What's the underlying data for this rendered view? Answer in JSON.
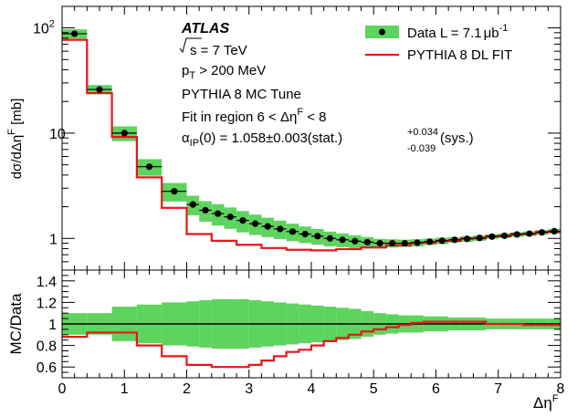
{
  "chart_data": [
    {
      "type": "line",
      "ylabel_main": "dσ/dΔη",
      "ylabel_sup": "F",
      "ylabel_unit": "[mb]",
      "yscale": "log",
      "ylim": [
        0.5,
        160
      ],
      "xlim": [
        0,
        8
      ],
      "y_ticks": [
        {
          "value": 100,
          "base": "10",
          "exp": "2"
        },
        {
          "value": 10,
          "base": "10",
          "exp": ""
        },
        {
          "value": 1,
          "base": "1",
          "exp": ""
        }
      ],
      "annotations": {
        "experiment": "ATLAS",
        "energy": "s = 7 TeV",
        "pt_base": "p",
        "pt_sub": "T",
        "pt_rest": " > 200 MeV",
        "tune": "PYTHIA 8 MC Tune",
        "fit_region": "Fit in region 6 < Δη",
        "fit_region_sup": "F",
        "fit_region_end": " < 8",
        "alpha_base": "α",
        "alpha_sub": "IP",
        "alpha_main": "(0) = 1.058±0.003(stat.)",
        "alpha_up": "+0.034",
        "alpha_down": "-0.039",
        "alpha_end": "(sys.)"
      },
      "legend": {
        "position": "top-right",
        "data_label": "Data L = 7.1",
        "data_unit": "μb",
        "data_exp": "-1",
        "mc_label": "PYTHIA 8 DL FIT"
      },
      "bin_edges": [
        0,
        0.4,
        0.8,
        1.2,
        1.6,
        2.0,
        2.2,
        2.4,
        2.6,
        2.8,
        3.0,
        3.2,
        3.4,
        3.6,
        3.8,
        4.0,
        4.2,
        4.4,
        4.6,
        4.8,
        5.0,
        5.2,
        5.4,
        5.6,
        5.8,
        6.0,
        6.2,
        6.4,
        6.6,
        6.8,
        7.0,
        7.2,
        7.4,
        7.6,
        7.8,
        8.0
      ],
      "series": [
        {
          "name": "Data L = 7.1μb-1",
          "values": [
            88,
            26,
            10,
            4.8,
            2.8,
            2.1,
            1.85,
            1.72,
            1.6,
            1.48,
            1.38,
            1.3,
            1.23,
            1.16,
            1.1,
            1.05,
            1.0,
            0.97,
            0.94,
            0.92,
            0.9,
            0.9,
            0.9,
            0.91,
            0.93,
            0.95,
            0.97,
            0.99,
            1.01,
            1.04,
            1.06,
            1.09,
            1.11,
            1.14,
            1.17
          ],
          "rel_unc": [
            0.1,
            0.1,
            0.16,
            0.18,
            0.2,
            0.21,
            0.22,
            0.23,
            0.23,
            0.23,
            0.22,
            0.21,
            0.2,
            0.19,
            0.18,
            0.17,
            0.16,
            0.15,
            0.14,
            0.12,
            0.1,
            0.09,
            0.08,
            0.08,
            0.07,
            0.07,
            0.06,
            0.06,
            0.06,
            0.05,
            0.05,
            0.05,
            0.05,
            0.05,
            0.05
          ]
        },
        {
          "name": "PYTHIA 8 DL FIT",
          "bin_edges": [
            0,
            0.4,
            0.8,
            1.2,
            1.6,
            2.0,
            2.4,
            2.8,
            3.2,
            3.6,
            4.0,
            4.4,
            4.8,
            5.2,
            5.6,
            6.0,
            6.4,
            6.8,
            7.2,
            7.6,
            8.0
          ],
          "values": [
            77,
            24,
            9.2,
            3.8,
            1.95,
            1.1,
            0.95,
            0.87,
            0.81,
            0.78,
            0.77,
            0.79,
            0.82,
            0.86,
            0.91,
            0.95,
            1.0,
            1.05,
            1.1,
            1.15
          ]
        }
      ]
    },
    {
      "type": "line",
      "ylabel": "MC/Data",
      "xlabel_base": "Δη",
      "xlabel_sup": "F",
      "ylim": [
        0.5,
        1.5
      ],
      "xlim": [
        0,
        8
      ],
      "y_ticks": [
        "0.6",
        "0.8",
        "1",
        "1.2",
        "1.4"
      ],
      "x_ticks": [
        "0",
        "1",
        "2",
        "3",
        "4",
        "5",
        "6",
        "7",
        "8"
      ],
      "reference_line": 1.0,
      "ratio_values": [
        0.88,
        0.92,
        0.92,
        0.8,
        0.7,
        0.62,
        0.6,
        0.6,
        0.62,
        0.66,
        0.7,
        0.74,
        0.76,
        0.8,
        0.84,
        0.87,
        0.9,
        0.93,
        0.95,
        0.97,
        0.99,
        1.01,
        1.02,
        1.02,
        1.0,
        0.99,
        1.0
      ]
    }
  ]
}
